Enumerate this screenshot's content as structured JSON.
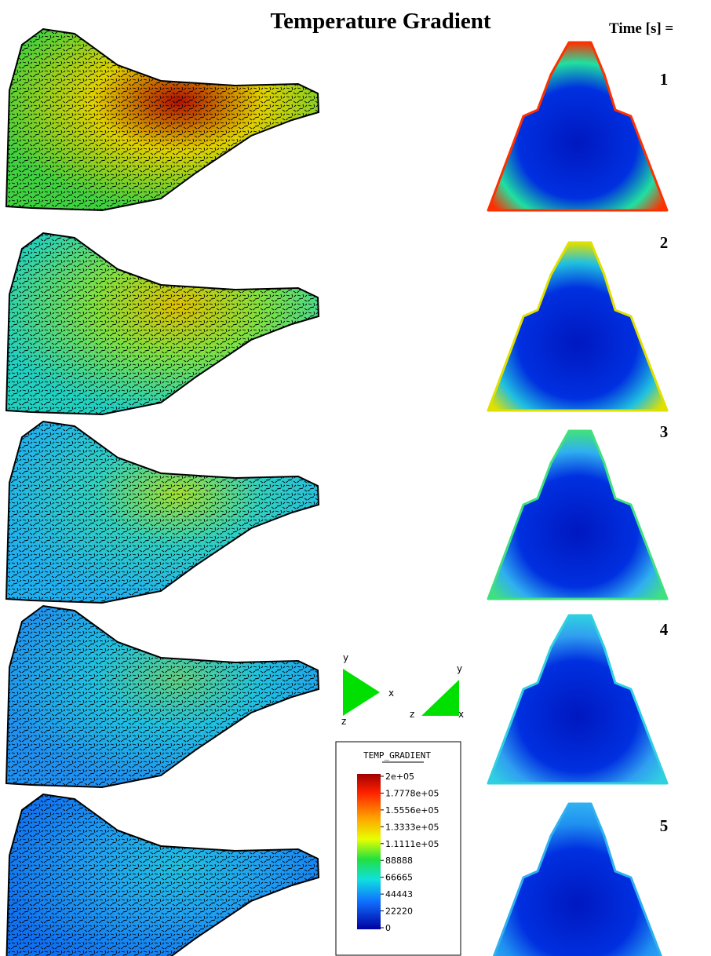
{
  "title": "Temperature Gradient",
  "time_label": "Time [s] =",
  "frames": [
    {
      "time": "1"
    },
    {
      "time": "2"
    },
    {
      "time": "3"
    },
    {
      "time": "4"
    },
    {
      "time": "5"
    }
  ],
  "triads": [
    {
      "axes": [
        "y",
        "x",
        "z"
      ]
    },
    {
      "axes": [
        "y",
        "z",
        "x"
      ]
    }
  ],
  "legend": {
    "title": "TEMP_GRADIENT",
    "labels": [
      "2e+05",
      "1.7778e+05",
      "1.5556e+05",
      "1.3333e+05",
      "1.1111e+05",
      "88888",
      "66665",
      "44443",
      "22220",
      "0"
    ]
  }
}
